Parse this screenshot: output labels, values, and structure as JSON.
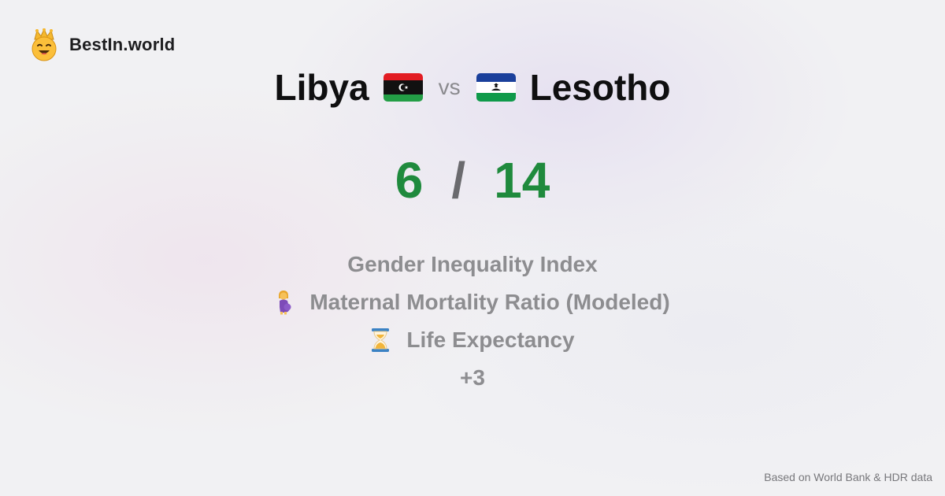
{
  "brand": {
    "name": "BestIn.world",
    "logo_icon": "crown-smiley-icon"
  },
  "comparison": {
    "left_country": "Libya",
    "left_flag_icon": "libya-flag-icon",
    "vs_label": "vs",
    "right_country": "Lesotho",
    "right_flag_icon": "lesotho-flag-icon"
  },
  "score": {
    "left": "6",
    "separator": "/",
    "right": "14",
    "color": "#1f8a3d"
  },
  "metrics": [
    {
      "label": "Gender Inequality Index",
      "icon": ""
    },
    {
      "label": "Maternal Mortality Ratio (Modeled)",
      "icon": "pregnant-woman-icon"
    },
    {
      "label": "Life Expectancy",
      "icon": "hourglass-icon"
    },
    {
      "label": "+3",
      "icon": ""
    }
  ],
  "footer": {
    "source": "Based on World Bank & HDR data"
  }
}
